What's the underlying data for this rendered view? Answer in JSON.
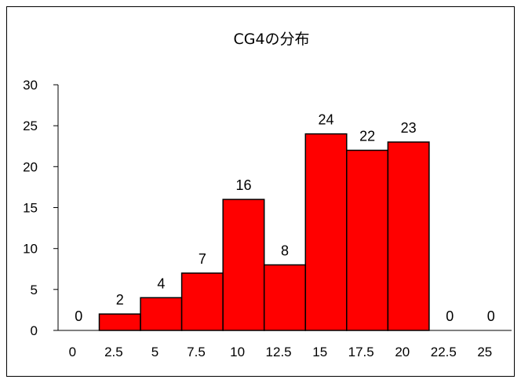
{
  "chart_data": {
    "type": "bar",
    "title": "CG4の分布",
    "xlabel": "",
    "ylabel": "",
    "categories": [
      "0",
      "2.5",
      "5",
      "7.5",
      "10",
      "12.5",
      "15",
      "17.5",
      "20",
      "22.5",
      "25"
    ],
    "values": [
      0,
      2,
      4,
      7,
      16,
      8,
      24,
      22,
      23,
      0,
      0
    ],
    "data_labels": [
      "0",
      "2",
      "4",
      "7",
      "16",
      "8",
      "24",
      "22",
      "23",
      "0",
      "0"
    ],
    "ylim": [
      0,
      30
    ],
    "yticks": [
      "0",
      "5",
      "10",
      "15",
      "20",
      "25",
      "30"
    ],
    "bar_color": "#ff0000",
    "bar_edge_color": "#000000",
    "grid": false,
    "legend": "none"
  }
}
